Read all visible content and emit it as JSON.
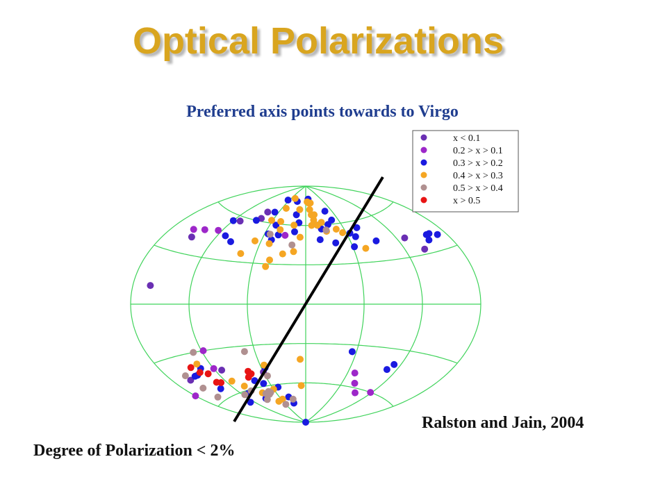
{
  "title": "Optical Polarizations",
  "subtitle": "Preferred axis points towards to Virgo",
  "credit": "Ralston and Jain, 2004",
  "footnote": "Degree of Polarization < 2%",
  "colors": {
    "title": "#d9a51f",
    "subtitle": "#1f3d8f",
    "grid": "#3fd35a",
    "axis_line": "#000000"
  },
  "chart_data": {
    "type": "scatter",
    "projection": "aitoff (sky map)",
    "grid": true,
    "legend_position": "top-right",
    "legend": [
      {
        "label": "x < 0.1",
        "color": "#6a2fb3"
      },
      {
        "label": "0.2 > x > 0.1",
        "color": "#9d27c9"
      },
      {
        "label": "0.3 > x > 0.2",
        "color": "#1a1ae0"
      },
      {
        "label": "0.4 > x > 0.3",
        "color": "#f5a623"
      },
      {
        "label": "0.5 > x > 0.4",
        "color": "#b09090"
      },
      {
        "label": "x > 0.5",
        "color": "#e81414"
      }
    ],
    "series": [
      {
        "name": "x < 0.1",
        "points": [
          [
            -110,
            57
          ],
          [
            -82,
            62
          ],
          [
            -82,
            67
          ],
          [
            -148,
            40
          ],
          [
            130,
            42
          ],
          [
            142,
            33
          ],
          [
            -162,
            10
          ],
          [
            -160,
            -44
          ],
          [
            -112,
            -44
          ],
          [
            -60,
            -50
          ]
        ]
      },
      {
        "name": "0.2 > x > 0.1",
        "points": [
          [
            -142,
            46
          ],
          [
            -125,
            48
          ],
          [
            -155,
            44
          ],
          [
            -30,
            52
          ],
          [
            -120,
            -42
          ],
          [
            -118,
            -30
          ],
          [
            80,
            -57
          ],
          [
            70,
            -50
          ],
          [
            118,
            -60
          ],
          [
            95,
            -63
          ],
          [
            -180,
            -51
          ]
        ]
      },
      {
        "name": "0.3 > x > 0.2",
        "points": [
          [
            -120,
            56
          ],
          [
            -110,
            46
          ],
          [
            -98,
            43
          ],
          [
            -87,
            60
          ],
          [
            -68,
            68
          ],
          [
            -55,
            52
          ],
          [
            -50,
            59
          ],
          [
            -47,
            48
          ],
          [
            -40,
            52
          ],
          [
            -20,
            68
          ],
          [
            -12,
            62
          ],
          [
            -17,
            55
          ],
          [
            20,
            60
          ],
          [
            25,
            57
          ],
          [
            20,
            49
          ],
          [
            40,
            46
          ],
          [
            65,
            52
          ],
          [
            80,
            55
          ],
          [
            38,
            60
          ],
          [
            70,
            49
          ],
          [
            93,
            44
          ],
          [
            62,
            42
          ],
          [
            155,
            37
          ],
          [
            162,
            40
          ],
          [
            158,
            40
          ],
          [
            170,
            38
          ],
          [
            -65,
            78
          ],
          [
            -30,
            78
          ],
          [
            10,
            80
          ],
          [
            45,
            70
          ],
          [
            48,
            63
          ],
          [
            -150,
            -43
          ],
          [
            -135,
            -40
          ],
          [
            -138,
            -54
          ],
          [
            -110,
            -62
          ],
          [
            -90,
            -68
          ],
          [
            -80,
            -55
          ],
          [
            -70,
            -58
          ],
          [
            -40,
            -70
          ],
          [
            -35,
            -75
          ],
          [
            -2,
            -90
          ],
          [
            -50,
            -62
          ],
          [
            -55,
            -47
          ],
          [
            55,
            -35
          ],
          [
            108,
            -44
          ],
          [
            112,
            -40
          ],
          [
            -146,
            -43
          ],
          [
            -127,
            -67
          ]
        ]
      },
      {
        "name": "0.4 > x > 0.3",
        "points": [
          [
            -68,
            46
          ],
          [
            -48,
            45
          ],
          [
            -42,
            33
          ],
          [
            -45,
            28
          ],
          [
            -28,
            38
          ],
          [
            -15,
            40
          ],
          [
            -8,
            51
          ],
          [
            -40,
            56
          ],
          [
            -62,
            62
          ],
          [
            -50,
            72
          ],
          [
            -45,
            62
          ],
          [
            -45,
            80
          ],
          [
            -15,
            72
          ],
          [
            5,
            78
          ],
          [
            10,
            77
          ],
          [
            15,
            77
          ],
          [
            10,
            72
          ],
          [
            12,
            68
          ],
          [
            18,
            68
          ],
          [
            15,
            64
          ],
          [
            20,
            60
          ],
          [
            10,
            60
          ],
          [
            28,
            62
          ],
          [
            32,
            55
          ],
          [
            48,
            56
          ],
          [
            55,
            53
          ],
          [
            75,
            40
          ],
          [
            -20,
            60
          ],
          [
            -78,
            36
          ],
          [
            -112,
            -52
          ],
          [
            -102,
            -57
          ],
          [
            -85,
            -64
          ],
          [
            -60,
            -63
          ],
          [
            -57,
            -71
          ],
          [
            -70,
            -72
          ],
          [
            -55,
            -45
          ],
          [
            -8,
            -62
          ],
          [
            -7,
            -42
          ],
          [
            -135,
            -37
          ]
        ]
      },
      {
        "name": "0.5 > x > 0.4",
        "points": [
          [
            -52,
            52
          ],
          [
            -18,
            45
          ],
          [
            -160,
            -41
          ],
          [
            -158,
            -50
          ],
          [
            -130,
            -30
          ],
          [
            -72,
            -34
          ],
          [
            -80,
            -65
          ],
          [
            -90,
            -69
          ],
          [
            -70,
            -65
          ],
          [
            -57,
            -53
          ],
          [
            -60,
            -75
          ],
          [
            -32,
            -72
          ],
          [
            -158,
            -57
          ],
          [
            -117,
            -62
          ],
          [
            -100,
            -61
          ],
          [
            -72,
            -64
          ],
          [
            -75,
            -66
          ],
          [
            32,
            56
          ]
        ]
      },
      {
        "name": "x > 0.5",
        "points": [
          [
            -145,
            -38
          ],
          [
            -140,
            -42
          ],
          [
            -132,
            -44
          ],
          [
            -133,
            -50
          ],
          [
            -85,
            -52
          ],
          [
            -80,
            -48
          ],
          [
            -78,
            -50
          ],
          [
            -128,
            -51
          ]
        ]
      }
    ],
    "preferred_axis": {
      "points": [
        [
          -80,
          -88
        ],
        [
          60,
          80
        ]
      ]
    }
  }
}
